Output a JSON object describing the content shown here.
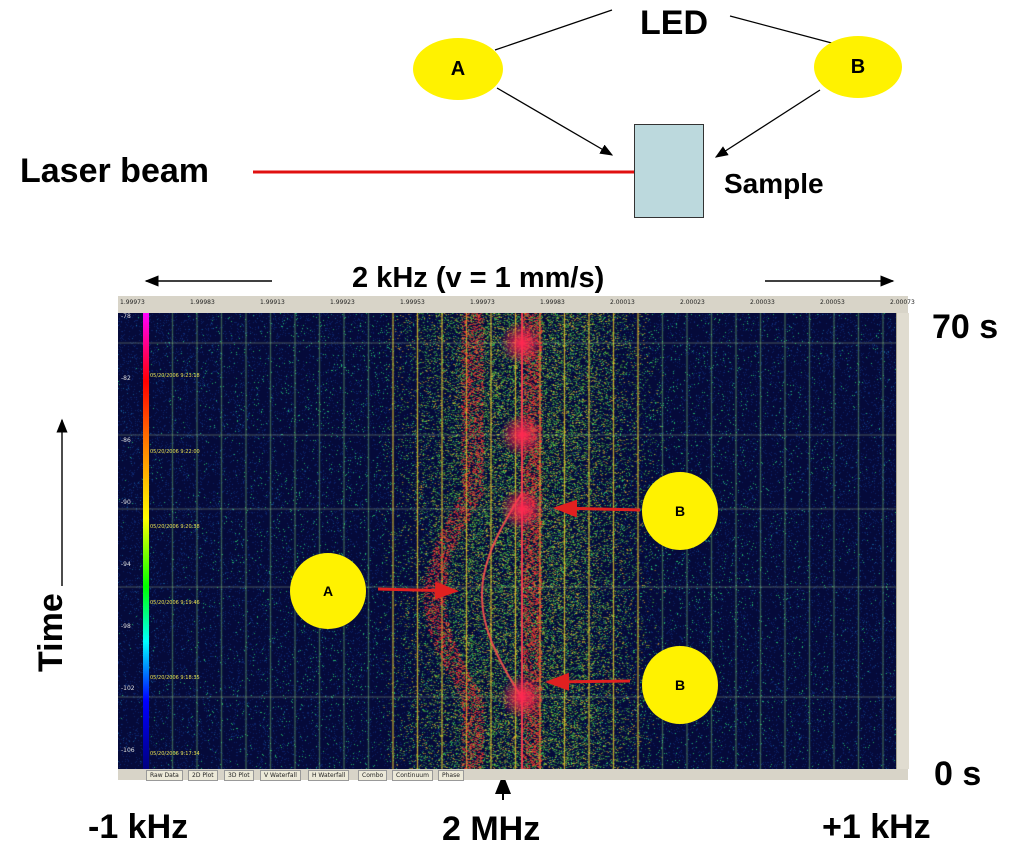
{
  "setup": {
    "led_label": "LED",
    "led_a_label": "A",
    "led_b_label": "B",
    "laser_label": "Laser beam",
    "sample_label": "Sample",
    "colors": {
      "led_fill": "#fff200",
      "laser": "#e01010",
      "sample_fill": "#bcd9dd"
    }
  },
  "spectrum": {
    "span_label": "2 kHz (v = 1 mm/s)",
    "time_label": "Time",
    "top_time_label": "70 s",
    "bottom_time_label": "0 s",
    "left_freq_label": "-1 kHz",
    "center_freq_label": "2 MHz",
    "right_freq_label": "+1 kHz",
    "callout_a_label": "A",
    "callout_b_upper_label": "B",
    "callout_b_lower_label": "B",
    "top_ticks": [
      "1.99973",
      "1.99983",
      "1.99913",
      "1.99923",
      "1.99953",
      "1.99973",
      "1.99983",
      "2.00013",
      "2.00023",
      "2.00033",
      "2.00053",
      "2.00073"
    ],
    "left_ticks": [
      "-78",
      "-82",
      "-86",
      "-90",
      "-94",
      "-98",
      "-102",
      "-106"
    ],
    "timestamps": [
      "05/20/2006 9:23:18",
      "05/20/2006 9:22:00",
      "05/20/2006 9:20:38",
      "05/20/2006 9:19:46",
      "05/20/2006 9:18:35",
      "05/20/2006 9:17:34"
    ],
    "tabs": [
      "Raw Data",
      "2D Plot",
      "3D Plot",
      "V Waterfall",
      "H Waterfall",
      "Combo",
      "Continuum",
      "Phase"
    ],
    "colors": {
      "background": "#050a3a",
      "line": "#f0d020",
      "hot": "#ff3030",
      "arrow": "#e02020"
    }
  }
}
